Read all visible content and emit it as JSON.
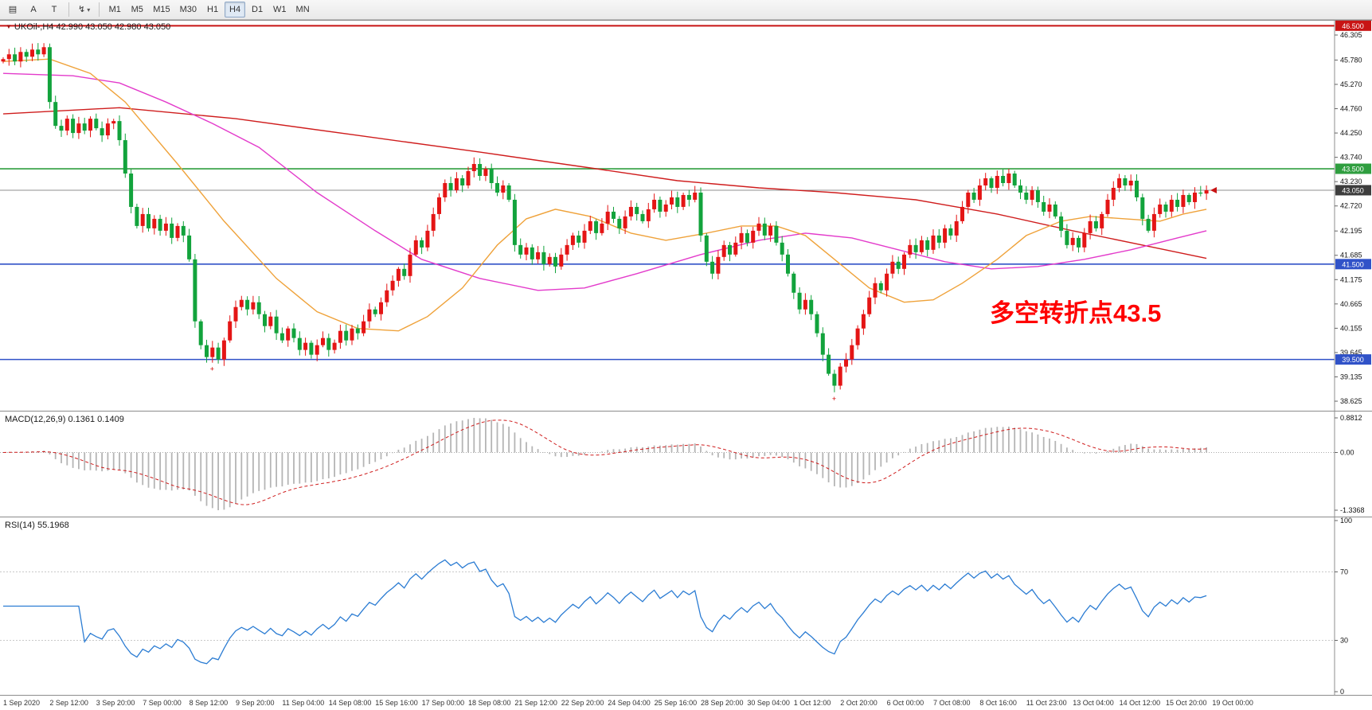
{
  "toolbar": {
    "tools": [
      {
        "name": "chart-window-icon",
        "glyph": "▤"
      },
      {
        "name": "cursor-tool-a",
        "glyph": "A"
      },
      {
        "name": "text-label-tool",
        "glyph": "T",
        "sep_after": true
      },
      {
        "name": "objects-tool",
        "glyph": "↯",
        "dropdown_glyph": "▾",
        "sep_after": true
      }
    ],
    "timeframes": [
      "M1",
      "M5",
      "M15",
      "M30",
      "H1",
      "H4",
      "D1",
      "W1",
      "MN"
    ],
    "active_timeframe": "H4"
  },
  "chart": {
    "marker_glyph": "▼",
    "symbol_title": "UKOil-,H4 42.990 43.050 42.980 43.050",
    "annotation": {
      "text": "多空转折点43.5",
      "color": "#ff0000"
    },
    "price_axis_ticks": [
      "46.305",
      "45.780",
      "45.270",
      "44.760",
      "44.250",
      "43.740",
      "43.230",
      "42.720",
      "42.195",
      "41.685",
      "41.175",
      "40.665",
      "40.155",
      "39.645",
      "39.135",
      "38.625"
    ],
    "price_lines": [
      {
        "label": "46.500",
        "price": 46.5,
        "color": "#c81414",
        "weight": 2,
        "tag_bg": "#c81414"
      },
      {
        "label": "43.500",
        "price": 43.5,
        "color": "#2f9e3f",
        "weight": 1.6,
        "tag_bg": "#2f9e3f"
      },
      {
        "label": "43.050",
        "price": 43.05,
        "color": "#8f8f8f",
        "weight": 1,
        "tag_bg": "#3d3d3d",
        "current": true
      },
      {
        "label": "41.500",
        "price": 41.5,
        "color": "#3052c8",
        "weight": 1.6,
        "tag_bg": "#3052c8"
      },
      {
        "label": "39.500",
        "price": 39.5,
        "color": "#3052c8",
        "weight": 1.6,
        "tag_bg": "#3052c8"
      }
    ],
    "time_axis_labels": [
      "1 Sep 2020",
      "2 Sep 12:00",
      "3 Sep 20:00",
      "7 Sep 00:00",
      "8 Sep 12:00",
      "9 Sep 20:00",
      "11 Sep 04:00",
      "14 Sep 08:00",
      "15 Sep 16:00",
      "17 Sep 00:00",
      "18 Sep 08:00",
      "21 Sep 12:00",
      "22 Sep 20:00",
      "24 Sep 04:00",
      "25 Sep 16:00",
      "28 Sep 20:00",
      "30 Sep 04:00",
      "1 Oct 12:00",
      "2 Oct 20:00",
      "6 Oct 00:00",
      "7 Oct 08:00",
      "8 Oct 16:00",
      "11 Oct 23:00",
      "13 Oct 04:00",
      "14 Oct 12:00",
      "15 Oct 20:00",
      "19 Oct 00:00"
    ]
  },
  "chart_data": {
    "type": "candlestick",
    "symbol": "UKOil-",
    "timeframe": "H4",
    "ohlc_last": {
      "open": 42.99,
      "high": 43.05,
      "low": 42.98,
      "close": 43.05
    },
    "up_color": "#e41515",
    "down_color": "#12a33c",
    "price_range_visible": [
      38.625,
      46.305
    ],
    "closes": [
      45.8,
      45.9,
      45.75,
      45.95,
      45.85,
      46.0,
      45.9,
      46.05,
      44.9,
      44.4,
      44.3,
      44.55,
      44.25,
      44.45,
      44.3,
      44.55,
      44.35,
      44.2,
      44.45,
      44.5,
      44.1,
      43.4,
      42.7,
      42.3,
      42.55,
      42.25,
      42.45,
      42.2,
      42.35,
      42.05,
      42.3,
      42.1,
      41.6,
      40.3,
      39.8,
      39.55,
      39.75,
      39.5,
      39.9,
      40.3,
      40.6,
      40.75,
      40.55,
      40.7,
      40.45,
      40.2,
      40.4,
      40.05,
      39.9,
      40.15,
      39.95,
      39.7,
      39.85,
      39.6,
      39.8,
      39.95,
      39.7,
      39.85,
      40.1,
      39.9,
      40.15,
      40.05,
      40.3,
      40.55,
      40.45,
      40.7,
      40.95,
      41.15,
      41.4,
      41.25,
      41.7,
      42.0,
      41.85,
      42.2,
      42.55,
      42.9,
      43.2,
      43.05,
      43.3,
      43.15,
      43.45,
      43.6,
      43.35,
      43.5,
      43.2,
      43.0,
      43.15,
      42.85,
      41.9,
      41.7,
      41.85,
      41.6,
      41.75,
      41.5,
      41.65,
      41.45,
      41.7,
      41.9,
      42.1,
      41.95,
      42.2,
      42.4,
      42.15,
      42.35,
      42.6,
      42.45,
      42.25,
      42.5,
      42.7,
      42.55,
      42.4,
      42.65,
      42.85,
      42.6,
      42.75,
      42.9,
      42.7,
      42.95,
      42.85,
      43.0,
      42.1,
      41.55,
      41.3,
      41.65,
      41.9,
      41.7,
      41.95,
      42.15,
      41.95,
      42.2,
      42.35,
      42.1,
      42.3,
      41.95,
      41.7,
      41.3,
      40.9,
      40.55,
      40.75,
      40.45,
      40.05,
      39.6,
      39.2,
      38.95,
      39.35,
      39.5,
      39.8,
      40.15,
      40.45,
      40.8,
      41.1,
      40.95,
      41.3,
      41.55,
      41.4,
      41.7,
      41.9,
      41.75,
      42.0,
      41.8,
      42.1,
      41.95,
      42.25,
      42.1,
      42.4,
      42.7,
      43.0,
      42.85,
      43.15,
      43.3,
      43.1,
      43.35,
      43.2,
      43.4,
      43.15,
      43.0,
      42.85,
      43.05,
      42.8,
      42.6,
      42.75,
      42.5,
      42.2,
      41.9,
      42.05,
      41.85,
      42.15,
      42.4,
      42.25,
      42.55,
      42.85,
      43.1,
      43.3,
      43.15,
      43.25,
      42.9,
      42.45,
      42.2,
      42.55,
      42.75,
      42.6,
      42.85,
      42.7,
      42.95,
      42.8,
      43.0,
      42.98,
      43.05
    ],
    "low_markers": [
      36,
      143
    ],
    "low_marker_glyph": "+",
    "moving_averages": [
      {
        "name": "slow-ma-red",
        "color": "#cf1d1d",
        "points": [
          [
            0,
            44.65
          ],
          [
            20,
            44.78
          ],
          [
            40,
            44.55
          ],
          [
            61,
            44.2
          ],
          [
            82,
            43.85
          ],
          [
            102,
            43.5
          ],
          [
            116,
            43.25
          ],
          [
            130,
            43.1
          ],
          [
            143,
            43.0
          ],
          [
            157,
            42.85
          ],
          [
            171,
            42.55
          ],
          [
            184,
            42.2
          ],
          [
            198,
            41.85
          ],
          [
            207,
            41.62
          ]
        ]
      },
      {
        "name": "mid-ma-magenta",
        "color": "#e33bcb",
        "points": [
          [
            0,
            45.5
          ],
          [
            12,
            45.45
          ],
          [
            20,
            45.3
          ],
          [
            28,
            44.9
          ],
          [
            36,
            44.45
          ],
          [
            44,
            43.95
          ],
          [
            54,
            43.0
          ],
          [
            64,
            42.2
          ],
          [
            72,
            41.6
          ],
          [
            82,
            41.2
          ],
          [
            92,
            40.95
          ],
          [
            100,
            41.0
          ],
          [
            109,
            41.3
          ],
          [
            120,
            41.7
          ],
          [
            130,
            42.0
          ],
          [
            138,
            42.15
          ],
          [
            146,
            42.05
          ],
          [
            154,
            41.8
          ],
          [
            162,
            41.55
          ],
          [
            170,
            41.4
          ],
          [
            178,
            41.45
          ],
          [
            186,
            41.6
          ],
          [
            194,
            41.8
          ],
          [
            202,
            42.05
          ],
          [
            207,
            42.2
          ]
        ]
      },
      {
        "name": "fast-ma-orange",
        "color": "#efa23a",
        "points": [
          [
            0,
            45.75
          ],
          [
            8,
            45.8
          ],
          [
            15,
            45.5
          ],
          [
            21,
            44.9
          ],
          [
            30,
            43.6
          ],
          [
            38,
            42.4
          ],
          [
            47,
            41.2
          ],
          [
            54,
            40.5
          ],
          [
            61,
            40.15
          ],
          [
            68,
            40.1
          ],
          [
            73,
            40.4
          ],
          [
            79,
            41.0
          ],
          [
            85,
            41.9
          ],
          [
            90,
            42.45
          ],
          [
            95,
            42.65
          ],
          [
            101,
            42.5
          ],
          [
            108,
            42.15
          ],
          [
            114,
            42.0
          ],
          [
            121,
            42.15
          ],
          [
            127,
            42.3
          ],
          [
            133,
            42.3
          ],
          [
            138,
            42.1
          ],
          [
            143,
            41.6
          ],
          [
            149,
            41.0
          ],
          [
            155,
            40.7
          ],
          [
            160,
            40.75
          ],
          [
            165,
            41.1
          ],
          [
            171,
            41.6
          ],
          [
            176,
            42.1
          ],
          [
            182,
            42.4
          ],
          [
            187,
            42.5
          ],
          [
            193,
            42.45
          ],
          [
            199,
            42.4
          ],
          [
            203,
            42.55
          ],
          [
            207,
            42.65
          ]
        ]
      }
    ],
    "macd": {
      "label": "MACD(12,26,9) 0.1361 0.1409",
      "params": [
        12,
        26,
        9
      ],
      "main_value": 0.1361,
      "signal_value": 0.1409,
      "axis": [
        "0.8812",
        "0.00",
        "-1.3368"
      ],
      "histogram_color": "#b5b5b5",
      "signal_color": "#cf1d1d"
    },
    "rsi": {
      "label": "RSI(14) 55.1968",
      "period": 14,
      "value": 55.1968,
      "axis": [
        "100",
        "70",
        "30",
        "0"
      ],
      "levels": [
        70,
        30
      ],
      "color": "#2b7cd3"
    }
  }
}
